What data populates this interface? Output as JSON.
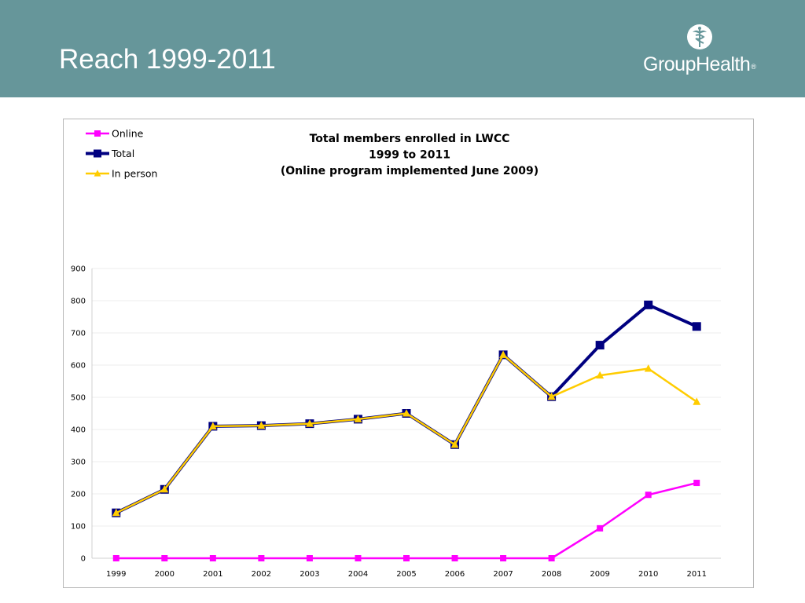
{
  "slide": {
    "title": "Reach 1999-2011",
    "logo_text": "GroupHealth",
    "logo_mark": "®",
    "header_color": "#66969a"
  },
  "chart_data": {
    "type": "line",
    "title_lines": [
      "Total members enrolled in LWCC",
      "1999 to 2011",
      "(Online program implemented June 2009)"
    ],
    "xlabel": "",
    "ylabel": "",
    "x": [
      "1999",
      "2000",
      "2001",
      "2002",
      "2003",
      "2004",
      "2005",
      "2006",
      "2007",
      "2008",
      "2009",
      "2010",
      "2011"
    ],
    "ylim": [
      0,
      900
    ],
    "yticks": [
      0,
      100,
      200,
      300,
      400,
      500,
      600,
      700,
      800,
      900
    ],
    "grid": true,
    "legend_position": "top-left",
    "series": [
      {
        "name": "Online",
        "color": "#ff00ff",
        "marker": "square",
        "values": [
          0,
          0,
          0,
          0,
          0,
          0,
          0,
          0,
          0,
          0,
          93,
          197,
          234
        ]
      },
      {
        "name": "Total",
        "color": "#000080",
        "marker": "square",
        "values": [
          141,
          214,
          410,
          412,
          418,
          432,
          450,
          353,
          632,
          502,
          662,
          787,
          720
        ]
      },
      {
        "name": "In person",
        "color": "#ffcc00",
        "marker": "triangle",
        "values": [
          141,
          214,
          410,
          412,
          418,
          432,
          450,
          353,
          632,
          502,
          568,
          589,
          486
        ]
      }
    ]
  }
}
